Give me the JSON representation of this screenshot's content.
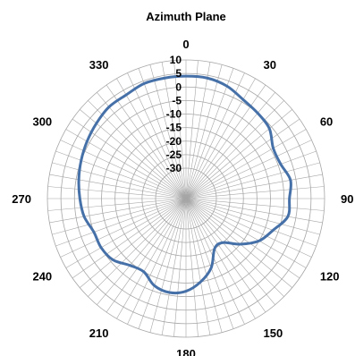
{
  "chart_data": {
    "type": "polar-line",
    "title": "Azimuth Plane",
    "radial_ticks": [
      "10",
      "5",
      "0",
      "-5",
      "-10",
      "-15",
      "-20",
      "-25",
      "-30"
    ],
    "radial_range": [
      -30,
      10
    ],
    "angle_ticks": [
      {
        "deg": 0,
        "label": "0"
      },
      {
        "deg": 30,
        "label": "30"
      },
      {
        "deg": 60,
        "label": "60"
      },
      {
        "deg": 90,
        "label": "90"
      },
      {
        "deg": 120,
        "label": "120"
      },
      {
        "deg": 150,
        "label": "150"
      },
      {
        "deg": 180,
        "label": "180"
      },
      {
        "deg": 210,
        "label": "210"
      },
      {
        "deg": 240,
        "label": "240"
      },
      {
        "deg": 270,
        "label": "270"
      },
      {
        "deg": 300,
        "label": "300"
      },
      {
        "deg": 330,
        "label": "330"
      }
    ],
    "grid": true,
    "angle_direction": "clockwise",
    "zero_direction": "top",
    "series": [
      {
        "color": "#4670a8",
        "points": [
          {
            "angle": 0,
            "value": 4
          },
          {
            "angle": 10,
            "value": 4
          },
          {
            "angle": 20,
            "value": 3
          },
          {
            "angle": 30,
            "value": 1
          },
          {
            "angle": 40,
            "value": 0
          },
          {
            "angle": 50,
            "value": -1
          },
          {
            "angle": 60,
            "value": -4
          },
          {
            "angle": 70,
            "value": -4
          },
          {
            "angle": 80,
            "value": -2
          },
          {
            "angle": 90,
            "value": -3
          },
          {
            "angle": 100,
            "value": -3
          },
          {
            "angle": 110,
            "value": -7
          },
          {
            "angle": 120,
            "value": -10
          },
          {
            "angle": 130,
            "value": -15
          },
          {
            "angle": 140,
            "value": -20
          },
          {
            "angle": 150,
            "value": -20
          },
          {
            "angle": 160,
            "value": -14
          },
          {
            "angle": 170,
            "value": -10
          },
          {
            "angle": 180,
            "value": -7
          },
          {
            "angle": 190,
            "value": -6
          },
          {
            "angle": 200,
            "value": -7
          },
          {
            "angle": 210,
            "value": -10
          },
          {
            "angle": 220,
            "value": -9
          },
          {
            "angle": 230,
            "value": -6
          },
          {
            "angle": 240,
            "value": -5
          },
          {
            "angle": 250,
            "value": -5
          },
          {
            "angle": 260,
            "value": -3
          },
          {
            "angle": 270,
            "value": -2
          },
          {
            "angle": 280,
            "value": -1
          },
          {
            "angle": 290,
            "value": 0
          },
          {
            "angle": 300,
            "value": 1
          },
          {
            "angle": 310,
            "value": 2
          },
          {
            "angle": 320,
            "value": 3
          },
          {
            "angle": 330,
            "value": 3
          },
          {
            "angle": 340,
            "value": 4
          },
          {
            "angle": 350,
            "value": 4
          }
        ]
      }
    ]
  }
}
